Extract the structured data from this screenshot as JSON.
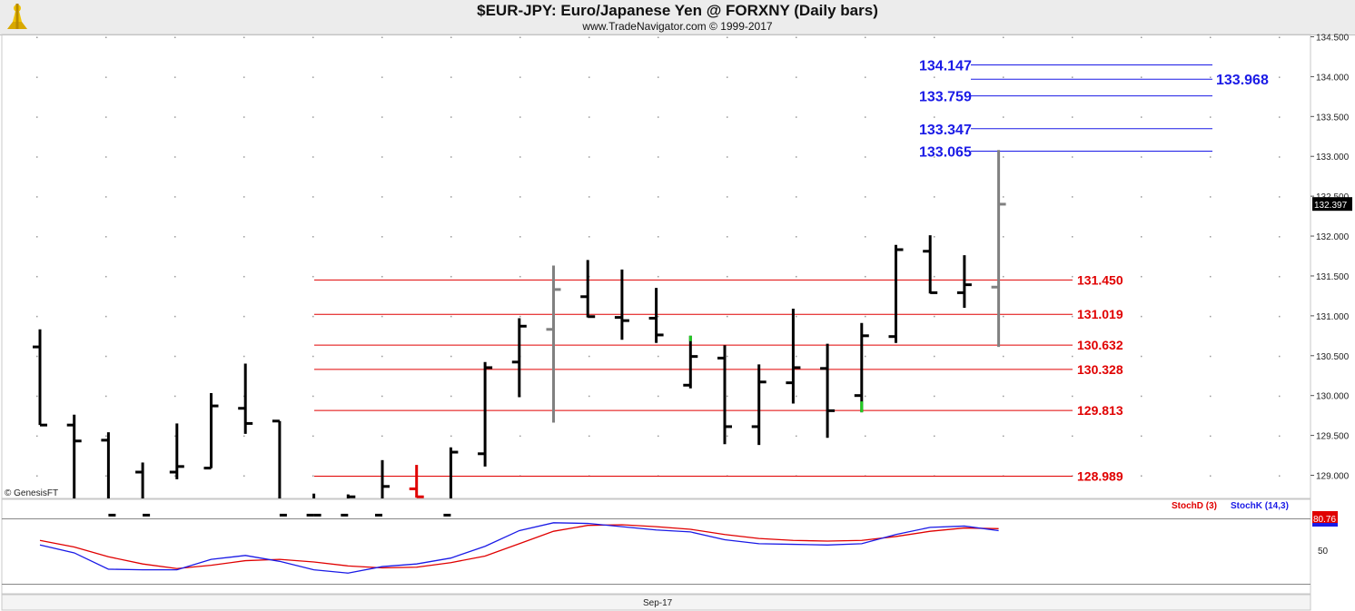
{
  "header": {
    "title": "$EUR-JPY:  Euro/Japanese Yen @ FORXNY  (Daily bars)",
    "subtitle": "www.TradeNavigator.com © 1999-2017",
    "logo_icon": "trade-navigator-logo-icon"
  },
  "colors": {
    "bar": "#000000",
    "bar_gray": "#808080",
    "bar_red": "#e00000",
    "bar_green": "#22cc22",
    "support_line": "#e00000",
    "resistance_line": "#1a1ae6",
    "stoch_d": "#e00000",
    "stoch_k": "#1a1ae6"
  },
  "chart_data": [
    {
      "type": "ohlc",
      "ylim": [
        128.8,
        134.6
      ],
      "y_tick_labels": [
        "134.500",
        "134.000",
        "133.500",
        "133.000",
        "132.500",
        "132.000",
        "131.500",
        "131.000",
        "130.500",
        "130.000",
        "129.500",
        "129.000"
      ],
      "x_tick_labels": [
        "Sep-17"
      ],
      "last_price_label": "132.397",
      "copyright": "© GenesisFT",
      "bars": [
        {
          "o": 130.61,
          "h": 130.83,
          "l": 129.63,
          "c": 129.63
        },
        {
          "o": 129.63,
          "h": 129.76,
          "l": 128.5,
          "c": 129.43
        },
        {
          "o": 129.44,
          "h": 129.54,
          "l": 128.5,
          "c": 128.5
        },
        {
          "o": 129.04,
          "h": 129.16,
          "l": 128.5,
          "c": 128.5
        },
        {
          "o": 129.04,
          "h": 129.65,
          "l": 128.95,
          "c": 129.11
        },
        {
          "o": 129.09,
          "h": 130.03,
          "l": 129.09,
          "c": 129.87
        },
        {
          "o": 129.84,
          "h": 130.4,
          "l": 129.52,
          "c": 129.65
        },
        {
          "o": 129.68,
          "h": 129.68,
          "l": 128.5,
          "c": 128.5
        },
        {
          "o": 128.5,
          "h": 128.77,
          "l": 128.5,
          "c": 128.5
        },
        {
          "o": 128.5,
          "h": 128.76,
          "l": 128.5,
          "c": 128.73
        },
        {
          "o": 128.5,
          "h": 129.19,
          "l": 128.5,
          "c": 128.86
        },
        {
          "o": 128.83,
          "h": 129.13,
          "l": 128.72,
          "c": 128.73,
          "color": "red"
        },
        {
          "o": 128.5,
          "h": 129.35,
          "l": 128.5,
          "c": 129.29
        },
        {
          "o": 129.27,
          "h": 130.42,
          "l": 129.11,
          "c": 130.35
        },
        {
          "o": 130.42,
          "h": 130.97,
          "l": 129.98,
          "c": 130.87
        },
        {
          "o": 130.83,
          "h": 131.63,
          "l": 129.66,
          "c": 131.33,
          "color": "gray"
        },
        {
          "o": 131.24,
          "h": 131.7,
          "l": 130.98,
          "c": 130.99
        },
        {
          "o": 130.98,
          "h": 131.58,
          "l": 130.7,
          "c": 130.94
        },
        {
          "o": 130.97,
          "h": 131.35,
          "l": 130.66,
          "c": 130.76
        },
        {
          "o": 130.13,
          "h": 130.75,
          "l": 130.09,
          "c": 130.49,
          "high_color": "green"
        },
        {
          "o": 130.47,
          "h": 130.63,
          "l": 129.39,
          "c": 129.61
        },
        {
          "o": 129.61,
          "h": 130.39,
          "l": 129.38,
          "c": 130.17
        },
        {
          "o": 130.16,
          "h": 131.09,
          "l": 129.9,
          "c": 130.35
        },
        {
          "o": 130.34,
          "h": 130.65,
          "l": 129.47,
          "c": 129.81
        },
        {
          "o": 130.0,
          "h": 130.91,
          "l": 129.79,
          "c": 130.75,
          "low_color": "green"
        },
        {
          "o": 130.74,
          "h": 131.89,
          "l": 130.66,
          "c": 131.83
        },
        {
          "o": 131.81,
          "h": 132.01,
          "l": 131.28,
          "c": 131.29
        },
        {
          "o": 131.29,
          "h": 131.76,
          "l": 131.1,
          "c": 131.39
        },
        {
          "o": 131.36,
          "h": 133.08,
          "l": 130.61,
          "c": 132.4,
          "color": "gray"
        }
      ],
      "support_levels": [
        "131.450",
        "131.019",
        "130.632",
        "130.328",
        "129.813",
        "128.989"
      ],
      "resistance_levels": [
        "134.147",
        "133.759",
        "133.347",
        "133.065"
      ],
      "resistance_extra": "133.968"
    },
    {
      "type": "line",
      "ylim": [
        0,
        100
      ],
      "y_tick_labels": [
        "50"
      ],
      "series": [
        {
          "name": "StochD (3)",
          "values": [
            67,
            57,
            42,
            31,
            24,
            29,
            36,
            38,
            34,
            28,
            25,
            26,
            33,
            43,
            62,
            81,
            90,
            91,
            88,
            84,
            76,
            70,
            67,
            66,
            67,
            73,
            81,
            86,
            85
          ]
        },
        {
          "name": "StochK (14,3)",
          "values": [
            60,
            48,
            23,
            22,
            22,
            38,
            44,
            35,
            22,
            17,
            27,
            31,
            40,
            58,
            82,
            94,
            93,
            88,
            83,
            80,
            68,
            62,
            61,
            60,
            62,
            76,
            87,
            89,
            82
          ]
        }
      ],
      "last_value_label": "80.76"
    }
  ]
}
